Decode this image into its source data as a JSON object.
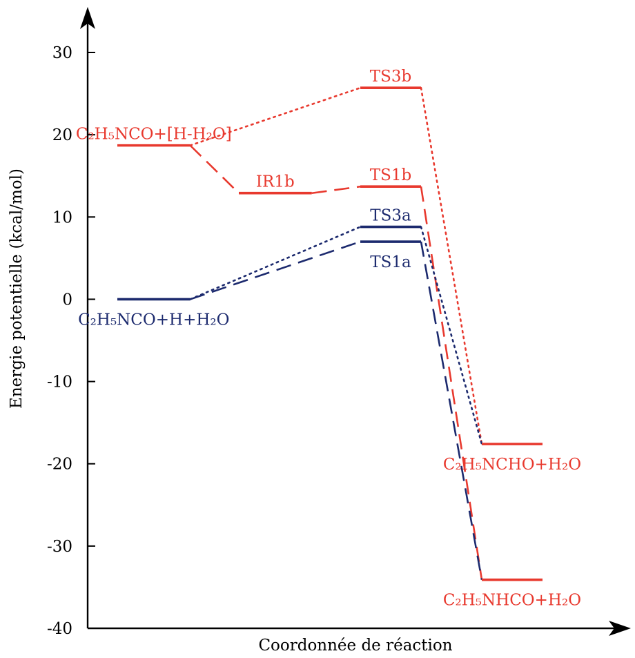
{
  "chart_data": {
    "type": "line",
    "title": "",
    "xlabel": "Coordonnée de réaction",
    "ylabel": "Energie potentielle (kcal/mol)",
    "ylim": [
      -40,
      30
    ],
    "yticks": [
      -40,
      -30,
      -20,
      -10,
      0,
      10,
      20,
      30
    ],
    "ytick_labels": [
      "-40",
      "-30",
      "-20",
      "-10",
      "0",
      "10",
      "20",
      "30"
    ],
    "grid": false,
    "legend": "none",
    "colors": {
      "red": "#e8392e",
      "blue": "#1c2a6e",
      "axis": "#000000"
    },
    "levels": [
      {
        "id": "react-b",
        "label": "C₂H₅NCO+[H-H₂O]",
        "energy": 18.7,
        "x_start": 1.0,
        "x_end": 2.2,
        "color": "red",
        "label_anchor": "above"
      },
      {
        "id": "react-a",
        "label": "C₂H₅NCO+H+H₂O",
        "energy": 0.0,
        "x_start": 1.0,
        "x_end": 2.2,
        "color": "blue",
        "label_anchor": "below"
      },
      {
        "id": "ir1b",
        "label": "IR1b",
        "energy": 12.9,
        "x_start": 3.0,
        "x_end": 4.2,
        "color": "red",
        "label_anchor": "above"
      },
      {
        "id": "ts3b",
        "label": "TS3b",
        "energy": 25.7,
        "x_start": 5.0,
        "x_end": 6.0,
        "color": "red",
        "label_anchor": "above"
      },
      {
        "id": "ts1b",
        "label": "TS1b",
        "energy": 13.7,
        "x_start": 5.0,
        "x_end": 6.0,
        "color": "red",
        "label_anchor": "above"
      },
      {
        "id": "ts3a",
        "label": "TS3a",
        "energy": 8.8,
        "x_start": 5.0,
        "x_end": 6.0,
        "color": "blue",
        "label_anchor": "above"
      },
      {
        "id": "ts1a",
        "label": "TS1a",
        "energy": 7.0,
        "x_start": 5.0,
        "x_end": 6.0,
        "color": "blue",
        "label_anchor": "below"
      },
      {
        "id": "prod-ncho",
        "label": "C₂H₅NCHO+H₂O",
        "energy": -17.6,
        "x_start": 7.0,
        "x_end": 8.0,
        "color": "red",
        "label_anchor": "below"
      },
      {
        "id": "prod-nhco",
        "label": "C₂H₅NHCO+H₂O",
        "energy": -34.1,
        "x_start": 7.0,
        "x_end": 8.0,
        "color": "red",
        "label_anchor": "below"
      }
    ],
    "connectors": [
      {
        "from": "react-b",
        "to": "ir1b",
        "style": "dashed",
        "color": "red"
      },
      {
        "from": "ir1b",
        "to": "ts1b",
        "style": "dashed",
        "color": "red"
      },
      {
        "from": "ts1b",
        "to": "prod-nhco",
        "style": "dashed",
        "color": "red"
      },
      {
        "from": "react-b",
        "to": "ts3b",
        "style": "dotted",
        "color": "red"
      },
      {
        "from": "ts3b",
        "to": "prod-ncho",
        "style": "dotted",
        "color": "red"
      },
      {
        "from": "react-a",
        "to": "ts1a",
        "style": "dashed",
        "color": "blue"
      },
      {
        "from": "ts1a",
        "to": "prod-nhco",
        "style": "dashed",
        "color": "blue"
      },
      {
        "from": "react-a",
        "to": "ts3a",
        "style": "dotted",
        "color": "blue"
      },
      {
        "from": "ts3a",
        "to": "prod-ncho",
        "style": "dotted",
        "color": "blue"
      }
    ]
  }
}
